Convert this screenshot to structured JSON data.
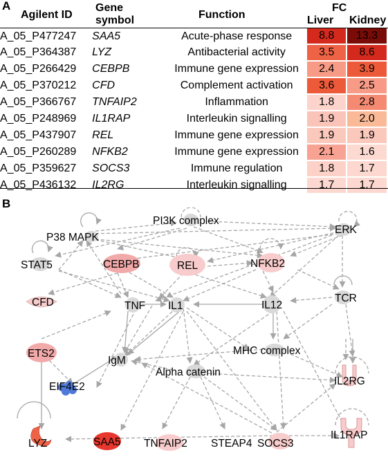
{
  "panel_a": {
    "letter": "A",
    "headers": {
      "id": "Agilent ID",
      "symbol_line1": "Gene",
      "symbol_line2": "symbol",
      "function": "Function",
      "fc": "FC",
      "liver": "Liver",
      "kidney": "Kidney"
    },
    "rows": [
      {
        "id": "A_05_P477247",
        "symbol": "SAA5",
        "function": "Acute-phase response",
        "liver": "8.8",
        "kidney": "13.3",
        "liver_color": "#d42a1e",
        "kidney_color": "#7a0c07"
      },
      {
        "id": "A_05_P364387",
        "symbol": "LYZ",
        "function": "Antibacterial activity",
        "liver": "3.5",
        "kidney": "8.6",
        "liver_color": "#ee6245",
        "kidney_color": "#d42a1e"
      },
      {
        "id": "A_05_P266429",
        "symbol": "CEBPB",
        "function": "Immune gene expression",
        "liver": "2.4",
        "kidney": "3.9",
        "liver_color": "#f79a86",
        "kidney_color": "#ec5a3a"
      },
      {
        "id": "A_05_P370212",
        "symbol": "CFD",
        "function": "Complement activation",
        "liver": "3.6",
        "kidney": "2.5",
        "liver_color": "#ec5a3a",
        "kidney_color": "#f79a86"
      },
      {
        "id": "A_05_P366767",
        "symbol": "TNFAIP2",
        "function": "Inflammation",
        "liver": "1.8",
        "kidney": "2.8",
        "liver_color": "#fcd4cc",
        "kidney_color": "#f58a72"
      },
      {
        "id": "A_05_P248969",
        "symbol": "IL1RAP",
        "function": "Interleukin signalling",
        "liver": "1.9",
        "kidney": "2.0",
        "liver_color": "#fbc4b8",
        "kidney_color": "#faba98"
      },
      {
        "id": "A_05_P437907",
        "symbol": "REL",
        "function": "Immune gene expression",
        "liver": "1.9",
        "kidney": "1.9",
        "liver_color": "#fbc8bc",
        "kidney_color": "#fbc8bc"
      },
      {
        "id": "A_05_P260289",
        "symbol": "NFKB2",
        "function": "Immune gene expression",
        "liver": "2.1",
        "kidney": "1.6",
        "liver_color": "#f7a292",
        "kidney_color": "#fcdad2"
      },
      {
        "id": "A_05_P359627",
        "symbol": "SOCS3",
        "function": "Immune regulation",
        "liver": "1.8",
        "kidney": "1.7",
        "liver_color": "#fcd2c8",
        "kidney_color": "#fcd8d0"
      },
      {
        "id": "A_05_P436132",
        "symbol": "IL2RG",
        "function": "Interleukin signalling",
        "liver": "1.7",
        "kidney": "1.7",
        "liver_color": "#fcd8d0",
        "kidney_color": "#fcd8d0"
      }
    ]
  },
  "panel_b": {
    "letter": "B",
    "nodes": {
      "p38": "P38 MAPK",
      "pi3k": "PI3K complex",
      "erk": "ERK",
      "stat5": "STAT5",
      "cebpb": "CEBPB",
      "rel": "REL",
      "nfkb2": "NFKB2",
      "tcr": "TCR",
      "cfd": "CFD",
      "tnf": "TNF",
      "il1": "IL1",
      "il12": "IL12",
      "mhc": "MHC complex",
      "ets2": "ETS2",
      "igm": "IgM",
      "alpha": "Alpha catenin",
      "il2rg": "IL2RG",
      "eif4e2": "EIF4E2",
      "il1rap": "IL1RAP",
      "lyz": "LYZ",
      "saa5": "SAA5",
      "tnfaip2": "TNFAIP2",
      "steap4": "STEAP4",
      "socs3": "SOCS3"
    },
    "colors": {
      "edge": "#a6a6a6",
      "node_gray": "#d9d9d9",
      "node_pink": "#f2a9a9",
      "node_light_pink": "#f8cccc",
      "node_red": "#e8372e",
      "node_blue": "#4f79d8"
    }
  }
}
